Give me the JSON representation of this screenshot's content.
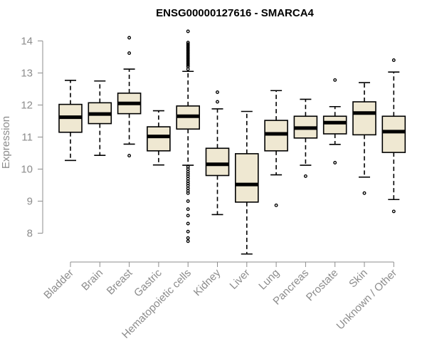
{
  "chart_data": {
    "type": "boxplot",
    "title": "ENSG00000127616 - SMARCA4",
    "xlabel": "",
    "ylabel": "Expression",
    "ylim": [
      7.3,
      14.5
    ],
    "yticks": [
      8,
      9,
      10,
      11,
      12,
      13,
      14
    ],
    "grid": false,
    "colors": {
      "box_fill": "#efe8d2",
      "stroke": "#000000",
      "axis": "#8c8c8c"
    },
    "categories": [
      "Bladder",
      "Brain",
      "Breast",
      "Gastric",
      "Hematopoietic cells",
      "Kidney",
      "Liver",
      "Lung",
      "Pancreas",
      "Prostate",
      "Skin",
      "Unknown / Other"
    ],
    "boxes": [
      {
        "q1": 11.15,
        "median": 11.62,
        "q3": 12.02,
        "whisker_low": 10.27,
        "whisker_high": 12.77,
        "outliers": []
      },
      {
        "q1": 11.42,
        "median": 11.72,
        "q3": 12.07,
        "whisker_low": 10.43,
        "whisker_high": 12.75,
        "outliers": []
      },
      {
        "q1": 11.73,
        "median": 12.05,
        "q3": 12.37,
        "whisker_low": 10.78,
        "whisker_high": 13.12,
        "outliers": [
          14.1,
          13.62,
          10.42
        ]
      },
      {
        "q1": 10.57,
        "median": 11.02,
        "q3": 11.32,
        "whisker_low": 10.13,
        "whisker_high": 11.82,
        "outliers": []
      },
      {
        "q1": 11.25,
        "median": 11.65,
        "q3": 11.97,
        "whisker_low": 10.12,
        "whisker_high": 13.05,
        "outliers": [
          14.3,
          13.95,
          13.9,
          13.85,
          13.8,
          13.75,
          13.7,
          13.65,
          13.6,
          13.55,
          13.5,
          13.45,
          13.4,
          13.35,
          13.3,
          13.25,
          13.2,
          13.12,
          10.07,
          10.0,
          9.92,
          9.85,
          9.78,
          9.7,
          9.62,
          9.55,
          9.48,
          9.4,
          9.32,
          9.25,
          9.0,
          8.75,
          8.55,
          8.3,
          8.05,
          7.85,
          7.75
        ]
      },
      {
        "q1": 9.8,
        "median": 10.15,
        "q3": 10.65,
        "whisker_low": 8.58,
        "whisker_high": 11.88,
        "outliers": [
          12.4,
          12.1
        ]
      },
      {
        "q1": 8.97,
        "median": 9.52,
        "q3": 10.48,
        "whisker_low": 7.35,
        "whisker_high": 11.8,
        "outliers": []
      },
      {
        "q1": 10.57,
        "median": 11.1,
        "q3": 11.52,
        "whisker_low": 9.82,
        "whisker_high": 12.45,
        "outliers": [
          8.87
        ]
      },
      {
        "q1": 10.97,
        "median": 11.28,
        "q3": 11.65,
        "whisker_low": 10.12,
        "whisker_high": 12.18,
        "outliers": [
          9.78
        ]
      },
      {
        "q1": 11.1,
        "median": 11.45,
        "q3": 11.65,
        "whisker_low": 10.77,
        "whisker_high": 11.95,
        "outliers": [
          12.78,
          10.2
        ]
      },
      {
        "q1": 11.07,
        "median": 11.75,
        "q3": 12.1,
        "whisker_low": 9.75,
        "whisker_high": 12.7,
        "outliers": [
          9.25
        ]
      },
      {
        "q1": 10.52,
        "median": 11.17,
        "q3": 11.65,
        "whisker_low": 9.05,
        "whisker_high": 13.03,
        "outliers": [
          13.4,
          8.68
        ]
      }
    ]
  }
}
